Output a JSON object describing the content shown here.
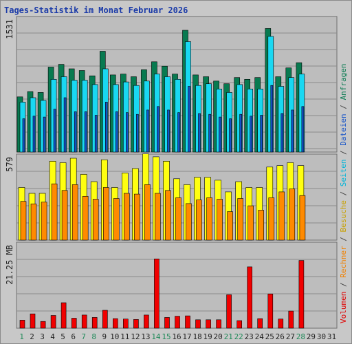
{
  "title": "Tages-Statistik im Monat Februar 2026",
  "colors": {
    "anfragen": "#087a50",
    "dateien": "#1452c8",
    "seiten": "#19d8f2",
    "besuche": "#ffff10",
    "rechner": "#ff8a00",
    "volumen": "#f00000",
    "day_weekday": "#222222",
    "day_weekend": "#208a5a",
    "separator": "#444444"
  },
  "legend": [
    {
      "label": "Volumen",
      "color": "#e00000"
    },
    {
      "label": "/",
      "color": "#444444"
    },
    {
      "label": "Rechner",
      "color": "#f08000"
    },
    {
      "label": "/",
      "color": "#444444"
    },
    {
      "label": "Besuche",
      "color": "#c8a000"
    },
    {
      "label": "/",
      "color": "#444444"
    },
    {
      "label": "Seiten",
      "color": "#00b4d8"
    },
    {
      "label": "/",
      "color": "#444444"
    },
    {
      "label": "Dateien",
      "color": "#1452c8"
    },
    {
      "label": "/",
      "color": "#444444"
    },
    {
      "label": "Anfragen",
      "color": "#087a50"
    }
  ],
  "chart_data": {
    "type": "bar",
    "title": "Tages-Statistik im Monat Februar 2026",
    "categories": [
      "1",
      "2",
      "3",
      "4",
      "5",
      "6",
      "7",
      "8",
      "9",
      "10",
      "11",
      "12",
      "13",
      "14",
      "15",
      "16",
      "17",
      "18",
      "19",
      "20",
      "21",
      "22",
      "23",
      "24",
      "25",
      "26",
      "27",
      "28",
      "29",
      "30",
      "31"
    ],
    "weekend_days": [
      "1",
      "7",
      "8",
      "14",
      "15",
      "21",
      "22",
      "28"
    ],
    "panels": [
      {
        "id": "requests",
        "max_label": "1531",
        "ymax": 1531,
        "series": [
          {
            "name": "Anfragen",
            "values": [
              630,
              690,
              680,
              970,
              1000,
              950,
              930,
              870,
              1150,
              880,
              890,
              860,
              940,
              1030,
              980,
              890,
              1390,
              880,
              860,
              810,
              780,
              850,
              830,
              850,
              1410,
              860,
              960,
              1020,
              0,
              0,
              0
            ]
          },
          {
            "name": "Seiten",
            "values": [
              570,
              620,
              590,
              830,
              860,
              820,
              820,
              770,
              950,
              770,
              800,
              760,
              810,
              890,
              860,
              830,
              1260,
              760,
              780,
              720,
              680,
              770,
              720,
              720,
              1320,
              750,
              850,
              890,
              0,
              0,
              0
            ]
          },
          {
            "name": "Dateien",
            "values": [
              380,
              410,
              400,
              490,
              620,
              460,
              460,
              420,
              570,
              460,
              450,
              430,
              480,
              520,
              480,
              450,
              750,
              440,
              430,
              400,
              380,
              430,
              410,
              420,
              760,
              440,
              480,
              520,
              0,
              0,
              0
            ]
          }
        ]
      },
      {
        "id": "visits",
        "max_label": "579",
        "ymax": 579,
        "series": [
          {
            "name": "Besuche",
            "values": [
              360,
              320,
              320,
              540,
              530,
              560,
              450,
              400,
              550,
              360,
              460,
              490,
              590,
              570,
              540,
              420,
              380,
              430,
              430,
              410,
              330,
              400,
              360,
              360,
              500,
              510,
              530,
              510,
              0,
              0,
              0
            ]
          },
          {
            "name": "Rechner",
            "values": [
              265,
              248,
              260,
              385,
              340,
              380,
              300,
              280,
              360,
              285,
              320,
              315,
              380,
              320,
              340,
              290,
              250,
              275,
              290,
              280,
              195,
              285,
              235,
              205,
              290,
              330,
              350,
              305,
              0,
              0,
              0
            ]
          }
        ]
      },
      {
        "id": "volume",
        "max_label": "21.25 MB",
        "ymax": 21.25,
        "series": [
          {
            "name": "Volumen",
            "values": [
              2.0,
              3.6,
              1.7,
              3.2,
              6.4,
              2.5,
              3.3,
              2.7,
              4.5,
              2.4,
              2.3,
              2.2,
              3.3,
              17.4,
              2.7,
              3.0,
              3.1,
              2.1,
              2.1,
              2.1,
              8.4,
              1.9,
              15.4,
              2.4,
              8.6,
              2.3,
              4.3,
              17.0,
              0,
              0,
              0
            ]
          }
        ]
      }
    ]
  }
}
